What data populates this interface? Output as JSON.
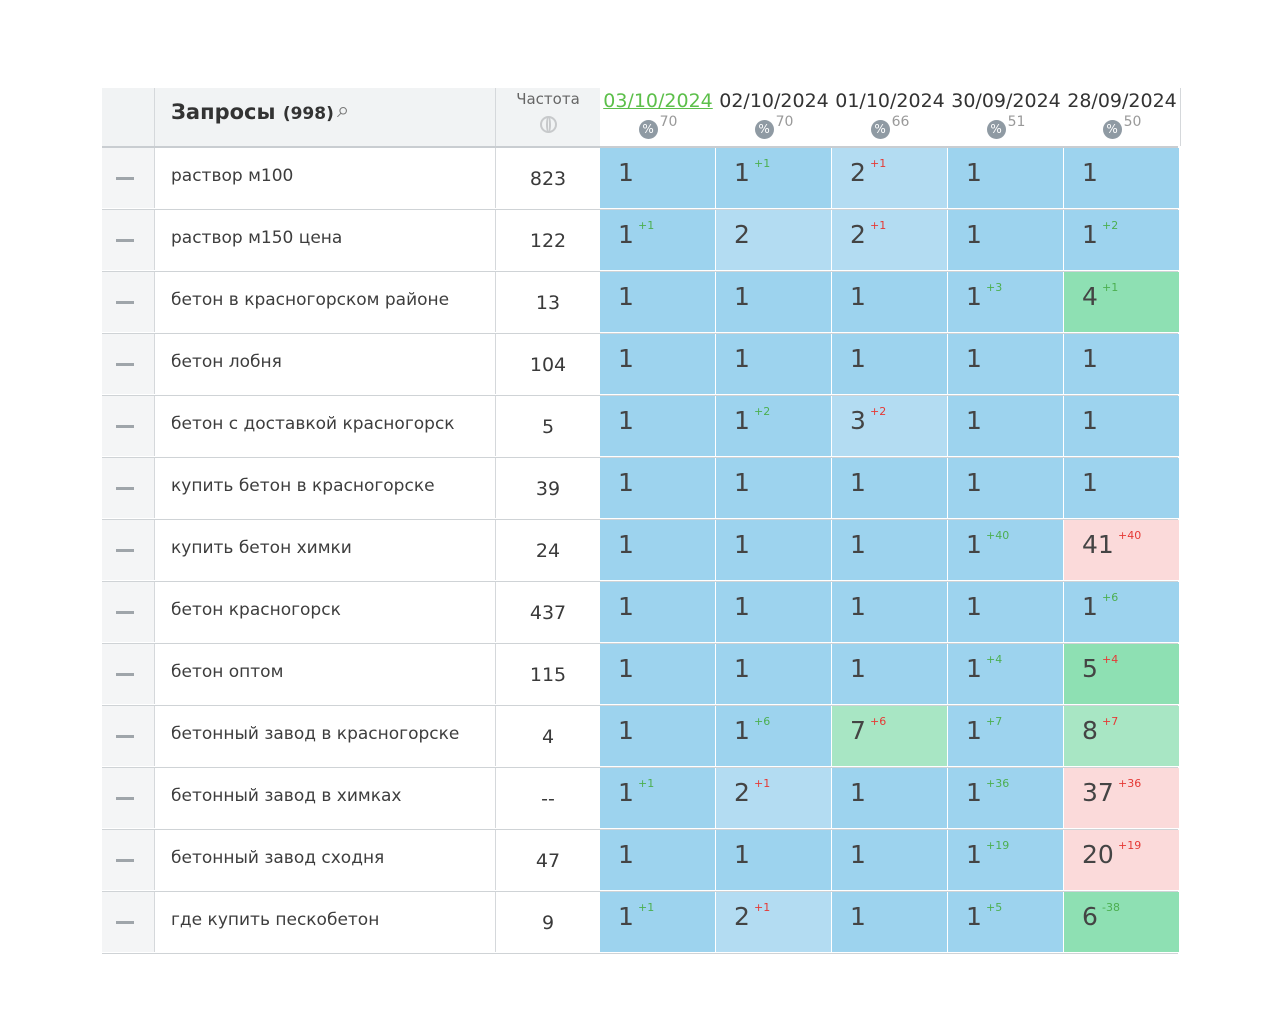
{
  "header": {
    "queries_label": "Запросы",
    "queries_count": "(998)",
    "frequency_label": "Частота",
    "dates": [
      {
        "date": "03/10/2024",
        "percent": "70",
        "active": true
      },
      {
        "date": "02/10/2024",
        "percent": "70",
        "active": false
      },
      {
        "date": "01/10/2024",
        "percent": "66",
        "active": false
      },
      {
        "date": "30/09/2024",
        "percent": "51",
        "active": false
      },
      {
        "date": "28/09/2024",
        "percent": "50",
        "active": false
      }
    ]
  },
  "colors": {
    "top1": "#9dd3ee",
    "top3": "#b3dcf2",
    "top10": "#8ee0b3",
    "top10_light": "#a8e6c4",
    "beyond": "#fbdada"
  },
  "rows": [
    {
      "query": "раствор м100",
      "freq": "823",
      "cells": [
        {
          "v": "1",
          "d": "",
          "dir": ""
        },
        {
          "v": "1",
          "d": "+1",
          "dir": "up"
        },
        {
          "v": "2",
          "d": "+1",
          "dir": "down"
        },
        {
          "v": "1",
          "d": "",
          "dir": ""
        },
        {
          "v": "1",
          "d": "",
          "dir": ""
        }
      ]
    },
    {
      "query": "раствор м150 цена",
      "freq": "122",
      "cells": [
        {
          "v": "1",
          "d": "+1",
          "dir": "up"
        },
        {
          "v": "2",
          "d": "",
          "dir": ""
        },
        {
          "v": "2",
          "d": "+1",
          "dir": "down"
        },
        {
          "v": "1",
          "d": "",
          "dir": ""
        },
        {
          "v": "1",
          "d": "+2",
          "dir": "up"
        }
      ]
    },
    {
      "query": "бетон в красногорском районе",
      "freq": "13",
      "cells": [
        {
          "v": "1",
          "d": "",
          "dir": ""
        },
        {
          "v": "1",
          "d": "",
          "dir": ""
        },
        {
          "v": "1",
          "d": "",
          "dir": ""
        },
        {
          "v": "1",
          "d": "+3",
          "dir": "up"
        },
        {
          "v": "4",
          "d": "+1",
          "dir": "up"
        }
      ]
    },
    {
      "query": "бетон лобня",
      "freq": "104",
      "cells": [
        {
          "v": "1",
          "d": "",
          "dir": ""
        },
        {
          "v": "1",
          "d": "",
          "dir": ""
        },
        {
          "v": "1",
          "d": "",
          "dir": ""
        },
        {
          "v": "1",
          "d": "",
          "dir": ""
        },
        {
          "v": "1",
          "d": "",
          "dir": ""
        }
      ]
    },
    {
      "query": "бетон с доставкой красногорск",
      "freq": "5",
      "cells": [
        {
          "v": "1",
          "d": "",
          "dir": ""
        },
        {
          "v": "1",
          "d": "+2",
          "dir": "up"
        },
        {
          "v": "3",
          "d": "+2",
          "dir": "down"
        },
        {
          "v": "1",
          "d": "",
          "dir": ""
        },
        {
          "v": "1",
          "d": "",
          "dir": ""
        }
      ]
    },
    {
      "query": "купить бетон в красногорске",
      "freq": "39",
      "cells": [
        {
          "v": "1",
          "d": "",
          "dir": ""
        },
        {
          "v": "1",
          "d": "",
          "dir": ""
        },
        {
          "v": "1",
          "d": "",
          "dir": ""
        },
        {
          "v": "1",
          "d": "",
          "dir": ""
        },
        {
          "v": "1",
          "d": "",
          "dir": ""
        }
      ]
    },
    {
      "query": "купить бетон химки",
      "freq": "24",
      "cells": [
        {
          "v": "1",
          "d": "",
          "dir": ""
        },
        {
          "v": "1",
          "d": "",
          "dir": ""
        },
        {
          "v": "1",
          "d": "",
          "dir": ""
        },
        {
          "v": "1",
          "d": "+40",
          "dir": "up"
        },
        {
          "v": "41",
          "d": "+40",
          "dir": "down"
        }
      ]
    },
    {
      "query": "бетон красногорск",
      "freq": "437",
      "cells": [
        {
          "v": "1",
          "d": "",
          "dir": ""
        },
        {
          "v": "1",
          "d": "",
          "dir": ""
        },
        {
          "v": "1",
          "d": "",
          "dir": ""
        },
        {
          "v": "1",
          "d": "",
          "dir": ""
        },
        {
          "v": "1",
          "d": "+6",
          "dir": "up"
        }
      ]
    },
    {
      "query": "бетон оптом",
      "freq": "115",
      "cells": [
        {
          "v": "1",
          "d": "",
          "dir": ""
        },
        {
          "v": "1",
          "d": "",
          "dir": ""
        },
        {
          "v": "1",
          "d": "",
          "dir": ""
        },
        {
          "v": "1",
          "d": "+4",
          "dir": "up"
        },
        {
          "v": "5",
          "d": "+4",
          "dir": "down"
        }
      ]
    },
    {
      "query": "бетонный завод в красногорске",
      "freq": "4",
      "cells": [
        {
          "v": "1",
          "d": "",
          "dir": ""
        },
        {
          "v": "1",
          "d": "+6",
          "dir": "up"
        },
        {
          "v": "7",
          "d": "+6",
          "dir": "down"
        },
        {
          "v": "1",
          "d": "+7",
          "dir": "up"
        },
        {
          "v": "8",
          "d": "+7",
          "dir": "down"
        }
      ]
    },
    {
      "query": "бетонный завод в химках",
      "freq": "--",
      "cells": [
        {
          "v": "1",
          "d": "+1",
          "dir": "up"
        },
        {
          "v": "2",
          "d": "+1",
          "dir": "down"
        },
        {
          "v": "1",
          "d": "",
          "dir": ""
        },
        {
          "v": "1",
          "d": "+36",
          "dir": "up"
        },
        {
          "v": "37",
          "d": "+36",
          "dir": "down"
        }
      ]
    },
    {
      "query": "бетонный завод сходня",
      "freq": "47",
      "cells": [
        {
          "v": "1",
          "d": "",
          "dir": ""
        },
        {
          "v": "1",
          "d": "",
          "dir": ""
        },
        {
          "v": "1",
          "d": "",
          "dir": ""
        },
        {
          "v": "1",
          "d": "+19",
          "dir": "up"
        },
        {
          "v": "20",
          "d": "+19",
          "dir": "down"
        }
      ]
    },
    {
      "query": "где купить пескобетон",
      "freq": "9",
      "cells": [
        {
          "v": "1",
          "d": "+1",
          "dir": "up"
        },
        {
          "v": "2",
          "d": "+1",
          "dir": "down"
        },
        {
          "v": "1",
          "d": "",
          "dir": ""
        },
        {
          "v": "1",
          "d": "+5",
          "dir": "up"
        },
        {
          "v": "6",
          "d": "-38",
          "dir": "up"
        }
      ]
    }
  ]
}
